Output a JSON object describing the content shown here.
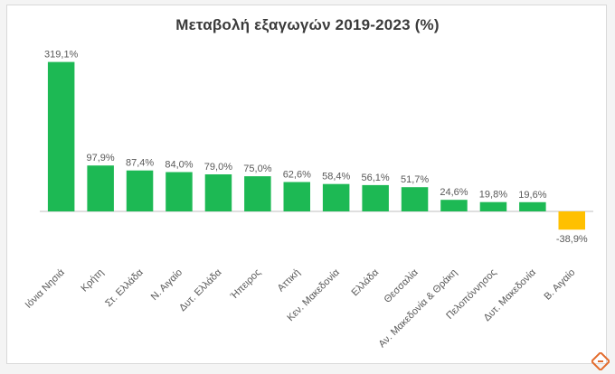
{
  "chart_data": {
    "type": "bar",
    "title": "Μεταβολή εξαγωγών 2019-2023 (%)",
    "xlabel": "",
    "ylabel": "",
    "grid": false,
    "categories": [
      "Ιόνια Νησιά",
      "Κρήτη",
      "Στ. Ελλάδα",
      "Ν. Αιγαίο",
      "Δυτ. Ελλάδα",
      "Ήπειρος",
      "Αττική",
      "Κεν. Μακεδονία",
      "Ελλάδα",
      "Θεσσαλία",
      "Αν. Μακεδονία & Θράκη",
      "Πελοπόννησος",
      "Δυτ. Μακεδονία",
      "Β. Αιγαίο"
    ],
    "values": [
      319.1,
      97.9,
      87.4,
      84.0,
      79.0,
      75.0,
      62.6,
      58.4,
      56.1,
      51.7,
      24.6,
      19.8,
      19.6,
      -38.9
    ],
    "data_labels": [
      "319,1%",
      "97,9%",
      "87,4%",
      "84,0%",
      "79,0%",
      "75,0%",
      "62,6%",
      "58,4%",
      "56,1%",
      "51,7%",
      "24,6%",
      "19,8%",
      "19,6%",
      "-38,9%"
    ],
    "colors": {
      "positive": "#1db954",
      "negative": "#ffc000",
      "axis": "#bfbfbf",
      "text": "#595959"
    }
  },
  "decoration": {
    "logo_icon": "corner-logo-icon",
    "logo_color": "#e36c2d"
  }
}
